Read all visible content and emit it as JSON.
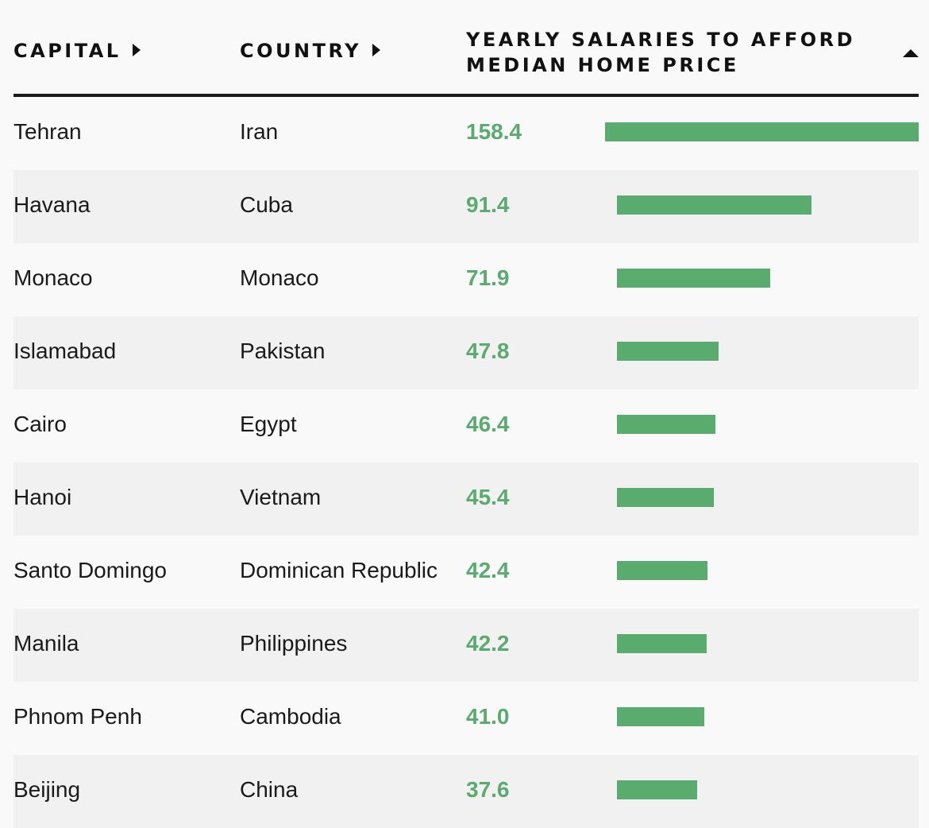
{
  "header": {
    "capital_label": "CAPITAL",
    "country_label": "COUNTRY",
    "salary_label_line1": "YEARLY SALARIES TO AFFORD",
    "salary_label_line2": "MEDIAN HOME PRICE"
  },
  "colors": {
    "bar": "#5aab6e",
    "value_text": "#5aab6e",
    "row_alt": "#f1f1f1"
  },
  "chart_data": {
    "type": "bar",
    "orientation": "horizontal",
    "title": "Yearly salaries to afford median home price",
    "categories": [
      "Tehran",
      "Havana",
      "Monaco",
      "Islamabad",
      "Cairo",
      "Hanoi",
      "Santo Domingo",
      "Manila",
      "Phnom Penh",
      "Beijing"
    ],
    "values": [
      158.4,
      91.4,
      71.9,
      47.8,
      46.4,
      45.4,
      42.4,
      42.2,
      41.0,
      37.6
    ],
    "xlim": [
      0,
      158.4
    ],
    "rows": [
      {
        "capital": "Tehran",
        "country": "Iran",
        "value": 158.4,
        "value_label": "158.4"
      },
      {
        "capital": "Havana",
        "country": "Cuba",
        "value": 91.4,
        "value_label": "91.4"
      },
      {
        "capital": "Monaco",
        "country": "Monaco",
        "value": 71.9,
        "value_label": "71.9"
      },
      {
        "capital": "Islamabad",
        "country": "Pakistan",
        "value": 47.8,
        "value_label": "47.8"
      },
      {
        "capital": "Cairo",
        "country": "Egypt",
        "value": 46.4,
        "value_label": "46.4"
      },
      {
        "capital": "Hanoi",
        "country": "Vietnam",
        "value": 45.4,
        "value_label": "45.4"
      },
      {
        "capital": "Santo Domingo",
        "country": "Dominican Republic",
        "value": 42.4,
        "value_label": "42.4"
      },
      {
        "capital": "Manila",
        "country": "Philippines",
        "value": 42.2,
        "value_label": "42.2"
      },
      {
        "capital": "Phnom Penh",
        "country": "Cambodia",
        "value": 41.0,
        "value_label": "41.0"
      },
      {
        "capital": "Beijing",
        "country": "China",
        "value": 37.6,
        "value_label": "37.6"
      }
    ]
  }
}
